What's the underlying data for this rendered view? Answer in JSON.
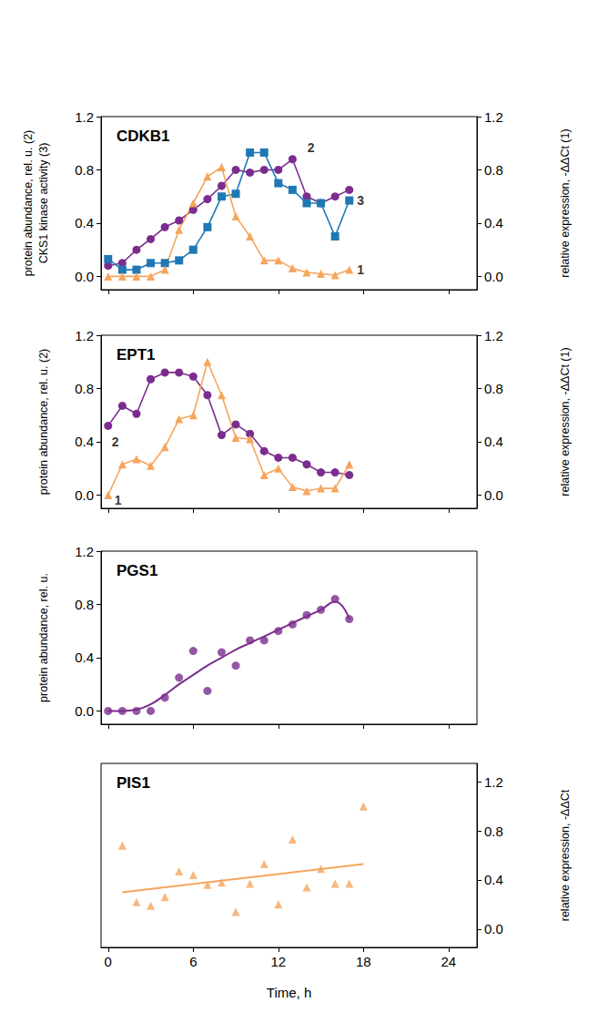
{
  "chart_data": [
    {
      "type": "line",
      "title": "CDKB1",
      "ylabel": [
        "protein abundance, rel. u. (2)",
        "CKS1 kinase activity (3)"
      ],
      "y2label": "relative expression, -ΔΔCt (1)",
      "xlim": [
        -0.5,
        26
      ],
      "xticks": [
        0,
        6,
        12,
        18,
        24
      ],
      "ylim": [
        -0.1,
        1.2
      ],
      "yticks": [
        {
          "value": 0,
          "label": "0.0"
        },
        0.4,
        0.8,
        1.2
      ],
      "y2lim": [
        -0.1,
        1.2
      ],
      "y2ticks": [
        {
          "value": 0,
          "label": "0.0"
        },
        0.4,
        0.8,
        1.2
      ],
      "tick_labels": "y",
      "grid": false,
      "series": [
        {
          "color": "#7B2D8E",
          "marker": "circle",
          "line_style": "solid",
          "x": [
            0,
            1,
            2,
            3,
            4,
            5,
            6,
            7,
            8,
            9,
            10,
            11,
            12,
            13,
            14,
            15,
            16,
            17
          ],
          "values": [
            0.08,
            0.1,
            0.2,
            0.28,
            0.37,
            0.42,
            0.5,
            0.58,
            0.68,
            0.8,
            0.78,
            0.8,
            0.8,
            0.88,
            0.6,
            0.55,
            0.6,
            0.65
          ]
        },
        {
          "color": "#1F78B4",
          "marker": "square",
          "line_style": "solid",
          "x": [
            0,
            1,
            2,
            3,
            4,
            5,
            6,
            7,
            8,
            9,
            10,
            11,
            12,
            13,
            14,
            15,
            16,
            17
          ],
          "values": [
            0.13,
            0.05,
            0.05,
            0.1,
            0.1,
            0.12,
            0.2,
            0.37,
            0.6,
            0.62,
            0.93,
            0.93,
            0.7,
            0.65,
            0.55,
            0.55,
            0.3,
            0.57
          ]
        },
        {
          "color": "#F5A55C",
          "marker": "triangle",
          "line_style": "solid",
          "axis": "y2",
          "x": [
            0,
            1,
            2,
            3,
            4,
            5,
            6,
            7,
            8,
            9,
            10,
            11,
            12,
            13,
            14,
            15,
            16,
            17
          ],
          "values": [
            0,
            0,
            0,
            0,
            0.05,
            0.35,
            0.55,
            0.75,
            0.82,
            0.45,
            0.3,
            0.12,
            0.12,
            0.06,
            0.03,
            0.02,
            0.01,
            0.05
          ]
        }
      ],
      "annotations": [
        {
          "text": "2",
          "x": 14.3,
          "y": 0.97
        },
        {
          "text": "3",
          "x": 17.8,
          "y": 0.57
        },
        {
          "text": "1",
          "x": 17.8,
          "y": 0.05
        }
      ]
    },
    {
      "type": "line",
      "title": "EPT1",
      "ylabel": "protein abundance, rel. u. (2)",
      "y2label": "relative expression, -ΔΔCt (1)",
      "xlim": [
        -0.5,
        26
      ],
      "xticks": [
        0,
        6,
        12,
        18,
        24
      ],
      "ylim": [
        -0.1,
        1.2
      ],
      "yticks": [
        {
          "value": 0,
          "label": "0.0"
        },
        0.4,
        0.8,
        1.2
      ],
      "y2lim": [
        -0.1,
        1.2
      ],
      "y2ticks": [
        {
          "value": 0,
          "label": "0.0"
        },
        0.4,
        0.8,
        1.2
      ],
      "tick_labels": "y",
      "grid": false,
      "series": [
        {
          "color": "#7B2D8E",
          "marker": "circle",
          "line_style": "solid",
          "x": [
            0,
            1,
            2,
            3,
            4,
            5,
            6,
            7,
            8,
            9,
            10,
            11,
            12,
            13,
            14,
            15,
            16,
            17
          ],
          "values": [
            0.52,
            0.67,
            0.61,
            0.87,
            0.92,
            0.92,
            0.89,
            0.75,
            0.45,
            0.53,
            0.46,
            0.33,
            0.28,
            0.28,
            0.23,
            0.17,
            0.17,
            0.15
          ]
        },
        {
          "color": "#F5A55C",
          "marker": "triangle",
          "line_style": "solid",
          "axis": "y2",
          "x": [
            0,
            1,
            2,
            3,
            4,
            5,
            6,
            7,
            8,
            9,
            10,
            11,
            12,
            13,
            14,
            15,
            16,
            17
          ],
          "values": [
            0,
            0.23,
            0.27,
            0.22,
            0.36,
            0.57,
            0.6,
            1.0,
            0.75,
            0.43,
            0.42,
            0.15,
            0.2,
            0.06,
            0.03,
            0.05,
            0.05,
            0.23
          ]
        }
      ],
      "annotations": [
        {
          "text": "2",
          "x": 0.5,
          "y": 0.4
        },
        {
          "text": "1",
          "x": 0.7,
          "y": -0.04
        }
      ]
    },
    {
      "type": "scatter",
      "title": "PGS1",
      "ylabel": "protein abundance, rel. u.",
      "xlim": [
        -0.5,
        26
      ],
      "xticks": [
        0,
        6,
        12,
        18,
        24
      ],
      "ylim": [
        -0.1,
        1.2
      ],
      "yticks": [
        {
          "value": 0,
          "label": "0.0"
        },
        0.4,
        0.8,
        1.2
      ],
      "tick_labels": "y",
      "grid": false,
      "series": [
        {
          "type": "scatter",
          "color": "#7B2D8E",
          "marker": "circle",
          "x": [
            0,
            1,
            2,
            3,
            4,
            5,
            6,
            7,
            8,
            9,
            10,
            11,
            12,
            13,
            14,
            15,
            16,
            17
          ],
          "values": [
            0,
            0,
            0,
            0,
            0.1,
            0.25,
            0.45,
            0.15,
            0.44,
            0.34,
            0.53,
            0.53,
            0.6,
            0.65,
            0.72,
            0.76,
            0.84,
            0.69
          ]
        },
        {
          "type": "line",
          "color": "#7B2D8E",
          "marker": "none",
          "line_style": "solid",
          "x": [
            0,
            1,
            2,
            3,
            4,
            5,
            6,
            7,
            8,
            9,
            10,
            11,
            12,
            13,
            14,
            15,
            16,
            17
          ],
          "values": [
            0,
            0,
            0.01,
            0.05,
            0.12,
            0.2,
            0.27,
            0.34,
            0.4,
            0.46,
            0.51,
            0.56,
            0.61,
            0.66,
            0.71,
            0.76,
            0.82,
            0.69
          ]
        }
      ]
    },
    {
      "type": "scatter",
      "title": "PIS1",
      "xlabel": "Time, h",
      "y2label": "relative expression, -ΔΔCt",
      "xlim": [
        -0.5,
        26
      ],
      "xticks": [
        0,
        6,
        12,
        18,
        24
      ],
      "y2lim": [
        -0.15,
        1.35
      ],
      "y2ticks": [
        {
          "value": 0,
          "label": "0.0"
        },
        0.4,
        0.8,
        1.2
      ],
      "grid": false,
      "series": [
        {
          "type": "scatter",
          "color": "#F5A55C",
          "marker": "triangle",
          "axis": "y2",
          "x": [
            1,
            2,
            3,
            4,
            5,
            6,
            7,
            8,
            9,
            10,
            11,
            12,
            13,
            14,
            15,
            16,
            17,
            18
          ],
          "values": [
            0.68,
            0.22,
            0.19,
            0.26,
            0.47,
            0.44,
            0.36,
            0.38,
            0.14,
            0.37,
            0.53,
            0.2,
            0.73,
            0.34,
            0.49,
            0.37,
            0.37,
            1.0
          ]
        },
        {
          "type": "line",
          "color": "#F5A55C",
          "marker": "none",
          "line_style": "solid",
          "axis": "y2",
          "x": [
            1,
            18
          ],
          "values": [
            0.3,
            0.53
          ]
        }
      ]
    }
  ]
}
